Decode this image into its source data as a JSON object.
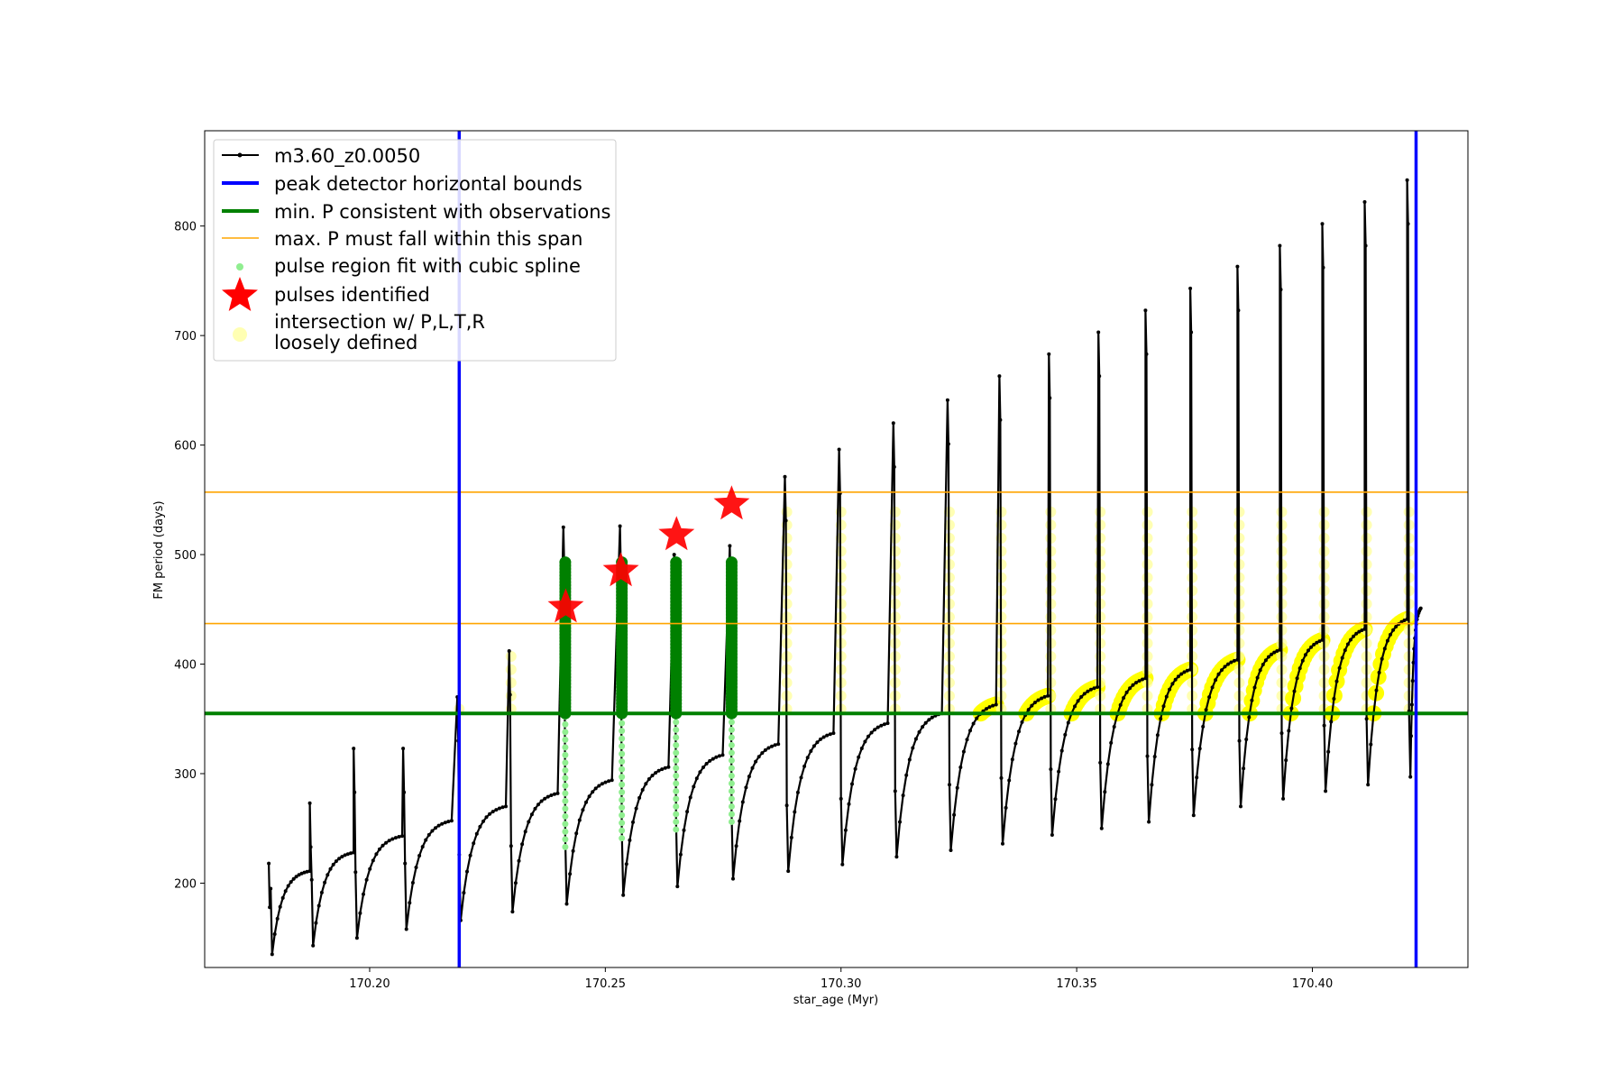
{
  "chart_data": {
    "type": "line",
    "xlabel": "star_age (Myr)",
    "ylabel": "FM period (days)",
    "xlim": [
      170.165,
      170.433
    ],
    "ylim": [
      123,
      887
    ],
    "xticks": [
      170.2,
      170.25,
      170.3,
      170.35,
      170.4
    ],
    "xtick_labels": [
      "170.20",
      "170.25",
      "170.30",
      "170.35",
      "170.40"
    ],
    "yticks": [
      200,
      300,
      400,
      500,
      600,
      700,
      800
    ],
    "ytick_labels": [
      "200",
      "300",
      "400",
      "500",
      "600",
      "700",
      "800"
    ],
    "grid": false,
    "legend_position": "upper-left",
    "legend": [
      {
        "label": "m3.60_z0.0050",
        "kind": "line-marker",
        "color": "#000000"
      },
      {
        "label": "peak detector horizontal bounds",
        "kind": "line",
        "color": "#0000ff"
      },
      {
        "label": "min. P consistent with observations",
        "kind": "line",
        "color": "#008000"
      },
      {
        "label": "max. P must fall within this span",
        "kind": "line",
        "color": "#ffa500"
      },
      {
        "label": "pulse region fit with cubic spline",
        "kind": "dot",
        "color": "#90ee90"
      },
      {
        "label": "pulses identified",
        "kind": "star",
        "color": "#ff0000"
      },
      {
        "label_lines": [
          "intersection w/ P,L,T,R",
          "loosely defined"
        ],
        "kind": "circle",
        "color": "#ffff99"
      }
    ],
    "series_name": "m3.60_z0.0050",
    "vertical_bounds": [
      170.219,
      170.422
    ],
    "min_p_line": 355,
    "max_p_span": [
      437,
      557
    ],
    "pulses": [
      {
        "x": 170.179,
        "base_min": 135,
        "plateau": 211,
        "spike": 218
      },
      {
        "x": 170.1877,
        "base_min": 143,
        "plateau": 228,
        "spike": 273
      },
      {
        "x": 170.197,
        "base_min": 150,
        "plateau": 243,
        "spike": 323
      },
      {
        "x": 170.2075,
        "base_min": 158,
        "plateau": 257,
        "spike": 323
      },
      {
        "x": 170.219,
        "base_min": 166,
        "plateau": 270,
        "spike": 370
      },
      {
        "x": 170.23,
        "base_min": 174,
        "plateau": 282,
        "spike": 412
      },
      {
        "x": 170.2415,
        "base_min": 181,
        "plateau": 294,
        "spike": 525
      },
      {
        "x": 170.2535,
        "base_min": 189,
        "plateau": 306,
        "spike": 526
      },
      {
        "x": 170.265,
        "base_min": 197,
        "plateau": 317,
        "spike": 500
      },
      {
        "x": 170.2768,
        "base_min": 204,
        "plateau": 327,
        "spike": 508
      },
      {
        "x": 170.2885,
        "base_min": 211,
        "plateau": 337,
        "spike": 571
      },
      {
        "x": 170.3,
        "base_min": 217,
        "plateau": 346,
        "spike": 596
      },
      {
        "x": 170.3115,
        "base_min": 224,
        "plateau": 355,
        "spike": 620
      },
      {
        "x": 170.323,
        "base_min": 230,
        "plateau": 363,
        "spike": 641
      },
      {
        "x": 170.334,
        "base_min": 236,
        "plateau": 371,
        "spike": 663
      },
      {
        "x": 170.3445,
        "base_min": 244,
        "plateau": 379,
        "spike": 683
      },
      {
        "x": 170.355,
        "base_min": 250,
        "plateau": 387,
        "spike": 703
      },
      {
        "x": 170.365,
        "base_min": 256,
        "plateau": 395,
        "spike": 723
      },
      {
        "x": 170.3745,
        "base_min": 262,
        "plateau": 404,
        "spike": 743
      },
      {
        "x": 170.3845,
        "base_min": 270,
        "plateau": 413,
        "spike": 763
      },
      {
        "x": 170.3935,
        "base_min": 277,
        "plateau": 422,
        "spike": 782
      },
      {
        "x": 170.4025,
        "base_min": 284,
        "plateau": 432,
        "spike": 802
      },
      {
        "x": 170.4115,
        "base_min": 290,
        "plateau": 441,
        "spike": 822
      },
      {
        "x": 170.4205,
        "base_min": 297,
        "plateau": 451,
        "spike": 842
      }
    ],
    "identified_pulses": [
      {
        "x": 170.2416,
        "y": 452
      },
      {
        "x": 170.2533,
        "y": 485
      },
      {
        "x": 170.2651,
        "y": 518
      },
      {
        "x": 170.2768,
        "y": 546
      }
    ],
    "spline_fit_pulses": [
      170.2415,
      170.2535,
      170.265,
      170.2768
    ],
    "loosely_defined_pulses": [
      170.219,
      170.23,
      170.2885,
      170.3,
      170.3115,
      170.323,
      170.334,
      170.3445,
      170.355,
      170.365,
      170.3745,
      170.3845,
      170.3935,
      170.4025,
      170.4115,
      170.4205
    ]
  }
}
